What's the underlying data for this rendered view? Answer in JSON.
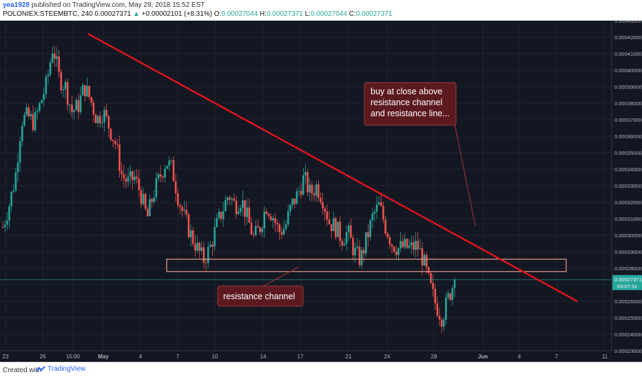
{
  "header": {
    "user": "yea1928",
    "published": "published on TradingView.com, May 29, 2018 15:52 EST",
    "symbol_line": "POLONIEX:STEEMBTC, 240",
    "last": "0.00027371",
    "change_arrow": "▲",
    "change": "+0.00002101 (+8.31%)",
    "o_label": "O:",
    "o": "0.00027044",
    "h_label": "H:",
    "h": "0.00027371",
    "l_label": "L:",
    "l": "0.00027044",
    "c_label": "C:",
    "c": "0.00027371"
  },
  "footer": {
    "created_with": "Created with",
    "brand": "TradingView"
  },
  "chart_data": {
    "type": "candlestick",
    "x_tick_labels": [
      "23",
      "26",
      "15:00",
      "May",
      "4",
      "7",
      "10",
      "14",
      "17",
      "21",
      "24",
      "28",
      "Jun",
      "4",
      "7",
      "11"
    ],
    "y_tick_labels": [
      "0.00043000",
      "0.00042000",
      "0.00041000",
      "0.00040000",
      "0.00039000",
      "0.00038000",
      "0.00037000",
      "0.00036000",
      "0.00035000",
      "0.00034000",
      "0.00033000",
      "0.00032000",
      "0.00031000",
      "0.00030000",
      "0.00029000",
      "0.00028000",
      "0.00027000",
      "0.00026000",
      "0.00025000",
      "0.00024000",
      "0.00023000"
    ],
    "ylim": [
      0.00023,
      0.00043
    ],
    "price_label": "0.00027371",
    "countdown_label": "03:07:31",
    "close_path": [
      0.000305,
      0.000318,
      0.000335,
      0.00037,
      0.000372,
      0.000368,
      0.00038,
      0.000392,
      0.000415,
      0.000395,
      0.00039,
      0.000375,
      0.000378,
      0.00039,
      0.000382,
      0.00037,
      0.000375,
      0.000365,
      0.000355,
      0.000336,
      0.000332,
      0.000335,
      0.000325,
      0.00031,
      0.000325,
      0.000335,
      0.000345,
      0.00034,
      0.000322,
      0.00031,
      0.0003,
      0.000292,
      0.000285,
      0.000292,
      0.000305,
      0.000315,
      0.000325,
      0.000318,
      0.000322,
      0.00031,
      0.000298,
      0.000305,
      0.000318,
      0.000312,
      0.000302,
      0.000305,
      0.000318,
      0.000325,
      0.000335,
      0.000325,
      0.00033,
      0.000322,
      0.000308,
      0.000305,
      0.000298,
      0.000302,
      0.00029,
      0.000285,
      0.000298,
      0.000312,
      0.000318,
      0.000305,
      0.000295,
      0.000292,
      0.000293,
      0.000292,
      0.000294,
      0.000285,
      0.00027,
      0.000258,
      0.00025,
      0.000262,
      0.000273
    ],
    "close_path_x_end_label": "28",
    "annotations": [
      {
        "text_lines": [
          "buy at close above",
          "resistance channel",
          "and resistance line..."
        ]
      },
      {
        "text_lines": [
          "resistance channel"
        ]
      }
    ],
    "trendline": {
      "from_y": 0.000422,
      "to_y": 0.00026,
      "color": "#e0141e"
    },
    "resistance_channel": {
      "y_top": 0.0002855,
      "y_bottom": 0.000278,
      "color": "#e8a38c"
    },
    "up_color": "#26a69a",
    "down_color": "#ef5350",
    "background": "#131722",
    "grid": true
  }
}
